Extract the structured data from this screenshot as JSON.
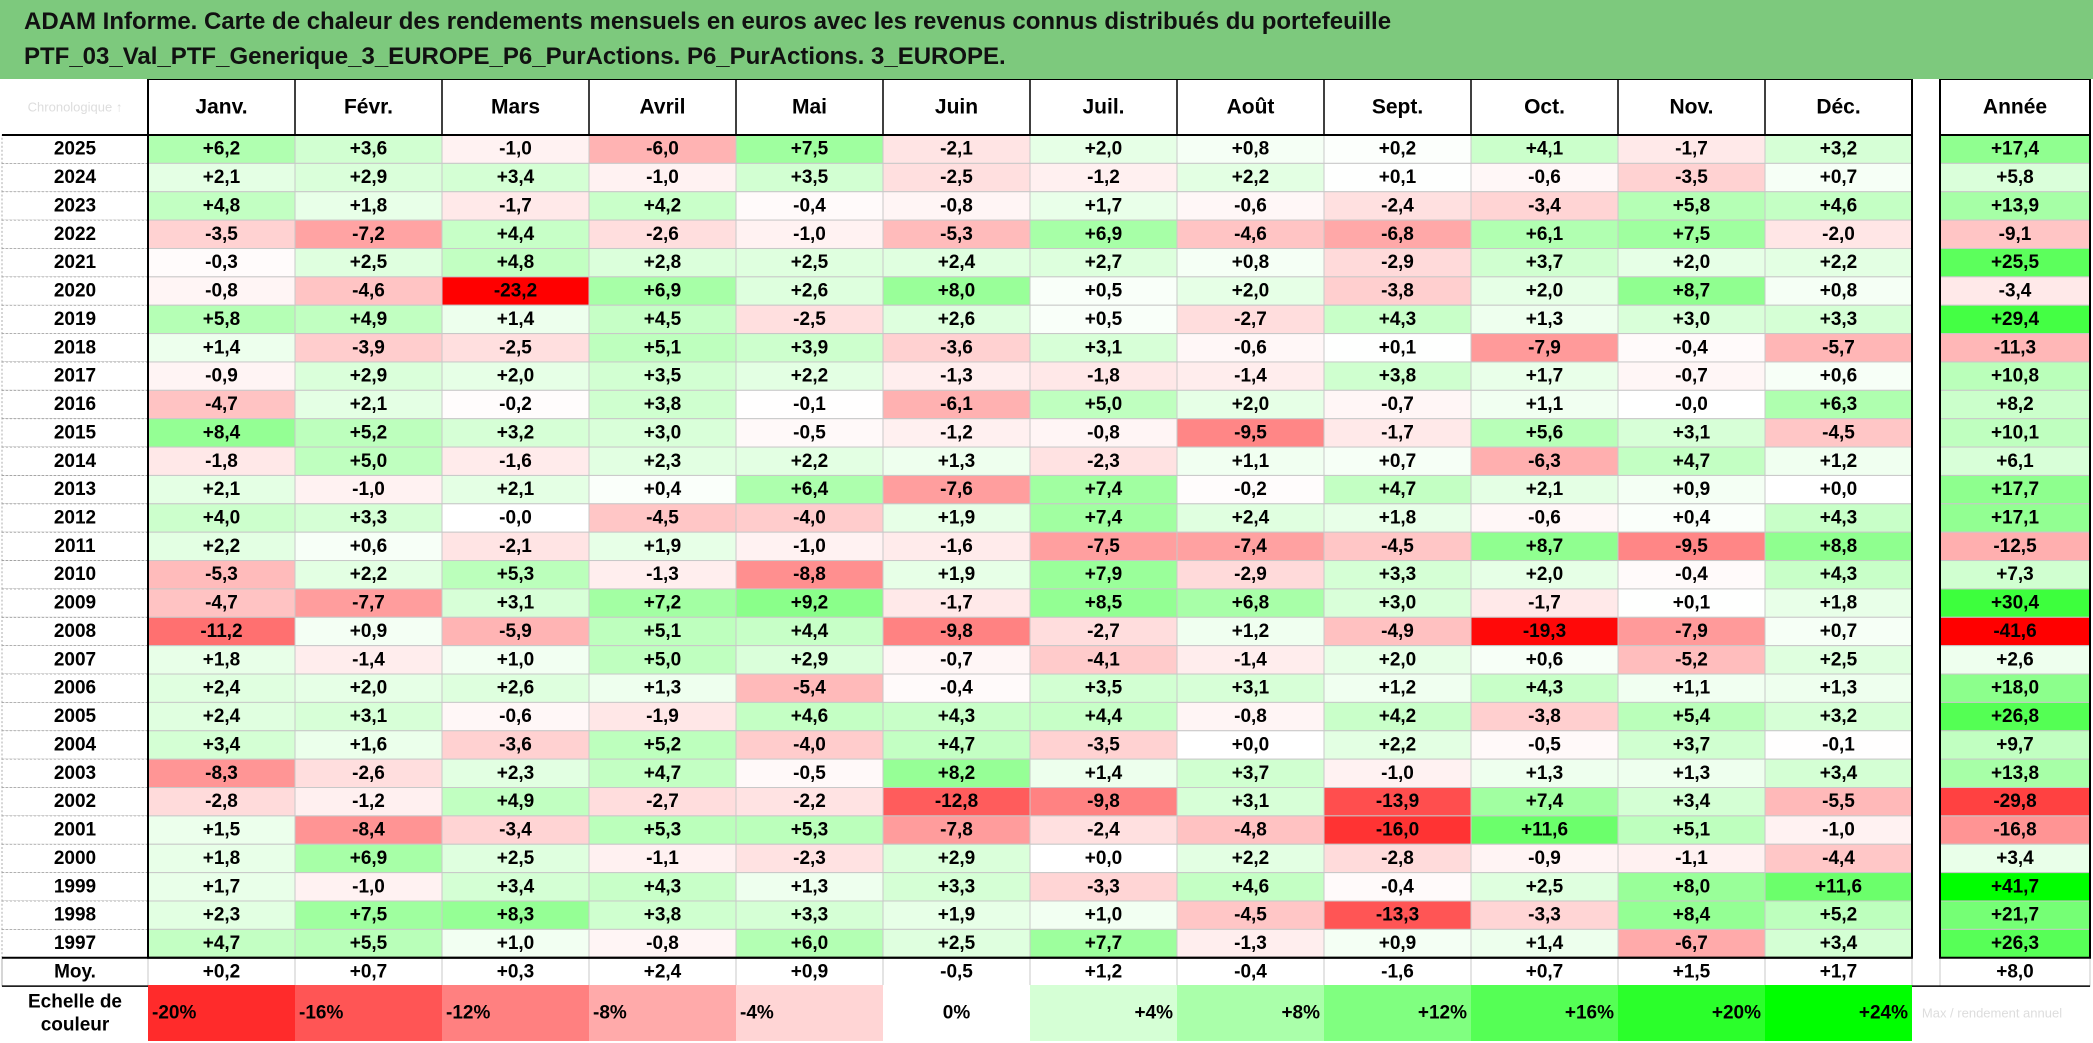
{
  "title": {
    "line1": "ADAM Informe. Carte de chaleur des rendements mensuels en euros avec les revenus connus distribués du portefeuille",
    "line2": "PTF_03_Val_PTF_Generique_3_EUROPE_P6_PurActions. P6_PurActions. 3_EUROPE."
  },
  "colors": {
    "title_bg": "#7dc97d",
    "max_red": "#ff0000",
    "max_green": "#00ff00",
    "zero": "#ffffff"
  },
  "corner_label": "Chronologique ↑",
  "chart_data": {
    "type": "heatmap",
    "columns": [
      "Janv.",
      "Févr.",
      "Mars",
      "Avril",
      "Mai",
      "Juin",
      "Juil.",
      "Août",
      "Sept.",
      "Oct.",
      "Nov.",
      "Déc."
    ],
    "annual_column": "Année",
    "rows": [
      {
        "year": "2025",
        "values": [
          "+6,2",
          "+3,6",
          "-1,0",
          "-6,0",
          "+7,5",
          "-2,1",
          "+2,0",
          "+0,8",
          "+0,2",
          "+4,1",
          "-1,7",
          "+3,2"
        ],
        "annual": "+17,4"
      },
      {
        "year": "2024",
        "values": [
          "+2,1",
          "+2,9",
          "+3,4",
          "-1,0",
          "+3,5",
          "-2,5",
          "-1,2",
          "+2,2",
          "+0,1",
          "-0,6",
          "-3,5",
          "+0,7"
        ],
        "annual": "+5,8"
      },
      {
        "year": "2023",
        "values": [
          "+4,8",
          "+1,8",
          "-1,7",
          "+4,2",
          "-0,4",
          "-0,8",
          "+1,7",
          "-0,6",
          "-2,4",
          "-3,4",
          "+5,8",
          "+4,6"
        ],
        "annual": "+13,9"
      },
      {
        "year": "2022",
        "values": [
          "-3,5",
          "-7,2",
          "+4,4",
          "-2,6",
          "-1,0",
          "-5,3",
          "+6,9",
          "-4,6",
          "-6,8",
          "+6,1",
          "+7,5",
          "-2,0"
        ],
        "annual": "-9,1"
      },
      {
        "year": "2021",
        "values": [
          "-0,3",
          "+2,5",
          "+4,8",
          "+2,8",
          "+2,5",
          "+2,4",
          "+2,7",
          "+0,8",
          "-2,9",
          "+3,7",
          "+2,0",
          "+2,2"
        ],
        "annual": "+25,5"
      },
      {
        "year": "2020",
        "values": [
          "-0,8",
          "-4,6",
          "-23,2",
          "+6,9",
          "+2,6",
          "+8,0",
          "+0,5",
          "+2,0",
          "-3,8",
          "+2,0",
          "+8,7",
          "+0,8"
        ],
        "annual": "-3,4"
      },
      {
        "year": "2019",
        "values": [
          "+5,8",
          "+4,9",
          "+1,4",
          "+4,5",
          "-2,5",
          "+2,6",
          "+0,5",
          "-2,7",
          "+4,3",
          "+1,3",
          "+3,0",
          "+3,3"
        ],
        "annual": "+29,4"
      },
      {
        "year": "2018",
        "values": [
          "+1,4",
          "-3,9",
          "-2,5",
          "+5,1",
          "+3,9",
          "-3,6",
          "+3,1",
          "-0,6",
          "+0,1",
          "-7,9",
          "-0,4",
          "-5,7"
        ],
        "annual": "-11,3"
      },
      {
        "year": "2017",
        "values": [
          "-0,9",
          "+2,9",
          "+2,0",
          "+3,5",
          "+2,2",
          "-1,3",
          "-1,8",
          "-1,4",
          "+3,8",
          "+1,7",
          "-0,7",
          "+0,6"
        ],
        "annual": "+10,8"
      },
      {
        "year": "2016",
        "values": [
          "-4,7",
          "+2,1",
          "-0,2",
          "+3,8",
          "-0,1",
          "-6,1",
          "+5,0",
          "+2,0",
          "-0,7",
          "+1,1",
          "-0,0",
          "+6,3"
        ],
        "annual": "+8,2"
      },
      {
        "year": "2015",
        "values": [
          "+8,4",
          "+5,2",
          "+3,2",
          "+3,0",
          "-0,5",
          "-1,2",
          "-0,8",
          "-9,5",
          "-1,7",
          "+5,6",
          "+3,1",
          "-4,5"
        ],
        "annual": "+10,1"
      },
      {
        "year": "2014",
        "values": [
          "-1,8",
          "+5,0",
          "-1,6",
          "+2,3",
          "+2,2",
          "+1,3",
          "-2,3",
          "+1,1",
          "+0,7",
          "-6,3",
          "+4,7",
          "+1,2"
        ],
        "annual": "+6,1"
      },
      {
        "year": "2013",
        "values": [
          "+2,1",
          "-1,0",
          "+2,1",
          "+0,4",
          "+6,4",
          "-7,6",
          "+7,4",
          "-0,2",
          "+4,7",
          "+2,1",
          "+0,9",
          "+0,0"
        ],
        "annual": "+17,7"
      },
      {
        "year": "2012",
        "values": [
          "+4,0",
          "+3,3",
          "-0,0",
          "-4,5",
          "-4,0",
          "+1,9",
          "+7,4",
          "+2,4",
          "+1,8",
          "-0,6",
          "+0,4",
          "+4,3"
        ],
        "annual": "+17,1"
      },
      {
        "year": "2011",
        "values": [
          "+2,2",
          "+0,6",
          "-2,1",
          "+1,9",
          "-1,0",
          "-1,6",
          "-7,5",
          "-7,4",
          "-4,5",
          "+8,7",
          "-9,5",
          "+8,8"
        ],
        "annual": "-12,5"
      },
      {
        "year": "2010",
        "values": [
          "-5,3",
          "+2,2",
          "+5,3",
          "-1,3",
          "-8,8",
          "+1,9",
          "+7,9",
          "-2,9",
          "+3,3",
          "+2,0",
          "-0,4",
          "+4,3"
        ],
        "annual": "+7,3"
      },
      {
        "year": "2009",
        "values": [
          "-4,7",
          "-7,7",
          "+3,1",
          "+7,2",
          "+9,2",
          "-1,7",
          "+8,5",
          "+6,8",
          "+3,0",
          "-1,7",
          "+0,1",
          "+1,8"
        ],
        "annual": "+30,4"
      },
      {
        "year": "2008",
        "values": [
          "-11,2",
          "+0,9",
          "-5,9",
          "+5,1",
          "+4,4",
          "-9,8",
          "-2,7",
          "+1,2",
          "-4,9",
          "-19,3",
          "-7,9",
          "+0,7"
        ],
        "annual": "-41,6"
      },
      {
        "year": "2007",
        "values": [
          "+1,8",
          "-1,4",
          "+1,0",
          "+5,0",
          "+2,9",
          "-0,7",
          "-4,1",
          "-1,4",
          "+2,0",
          "+0,6",
          "-5,2",
          "+2,5"
        ],
        "annual": "+2,6"
      },
      {
        "year": "2006",
        "values": [
          "+2,4",
          "+2,0",
          "+2,6",
          "+1,3",
          "-5,4",
          "-0,4",
          "+3,5",
          "+3,1",
          "+1,2",
          "+4,3",
          "+1,1",
          "+1,3"
        ],
        "annual": "+18,0"
      },
      {
        "year": "2005",
        "values": [
          "+2,4",
          "+3,1",
          "-0,6",
          "-1,9",
          "+4,6",
          "+4,3",
          "+4,4",
          "-0,8",
          "+4,2",
          "-3,8",
          "+5,4",
          "+3,2"
        ],
        "annual": "+26,8"
      },
      {
        "year": "2004",
        "values": [
          "+3,4",
          "+1,6",
          "-3,6",
          "+5,2",
          "-4,0",
          "+4,7",
          "-3,5",
          "+0,0",
          "+2,2",
          "-0,5",
          "+3,7",
          "-0,1"
        ],
        "annual": "+9,7"
      },
      {
        "year": "2003",
        "values": [
          "-8,3",
          "-2,6",
          "+2,3",
          "+4,7",
          "-0,5",
          "+8,2",
          "+1,4",
          "+3,7",
          "-1,0",
          "+1,3",
          "+1,3",
          "+3,4"
        ],
        "annual": "+13,8"
      },
      {
        "year": "2002",
        "values": [
          "-2,8",
          "-1,2",
          "+4,9",
          "-2,7",
          "-2,2",
          "-12,8",
          "-9,8",
          "+3,1",
          "-13,9",
          "+7,4",
          "+3,4",
          "-5,5"
        ],
        "annual": "-29,8"
      },
      {
        "year": "2001",
        "values": [
          "+1,5",
          "-8,4",
          "-3,4",
          "+5,3",
          "+5,3",
          "-7,8",
          "-2,4",
          "-4,8",
          "-16,0",
          "+11,6",
          "+5,1",
          "-1,0"
        ],
        "annual": "-16,8"
      },
      {
        "year": "2000",
        "values": [
          "+1,8",
          "+6,9",
          "+2,5",
          "-1,1",
          "-2,3",
          "+2,9",
          "+0,0",
          "+2,2",
          "-2,8",
          "-0,9",
          "-1,1",
          "-4,4"
        ],
        "annual": "+3,4"
      },
      {
        "year": "1999",
        "values": [
          "+1,7",
          "-1,0",
          "+3,4",
          "+4,3",
          "+1,3",
          "+3,3",
          "-3,3",
          "+4,6",
          "-0,4",
          "+2,5",
          "+8,0",
          "+11,6"
        ],
        "annual": "+41,7"
      },
      {
        "year": "1998",
        "values": [
          "+2,3",
          "+7,5",
          "+8,3",
          "+3,8",
          "+3,3",
          "+1,9",
          "+1,0",
          "-4,5",
          "-13,3",
          "-3,3",
          "+8,4",
          "+5,2"
        ],
        "annual": "+21,7"
      },
      {
        "year": "1997",
        "values": [
          "+4,7",
          "+5,5",
          "+1,0",
          "-0,8",
          "+6,0",
          "+2,5",
          "+7,7",
          "-1,3",
          "+0,9",
          "+1,4",
          "-6,7",
          "+3,4"
        ],
        "annual": "+26,3"
      }
    ],
    "average": {
      "label": "Moy.",
      "values": [
        "+0,2",
        "+0,7",
        "+0,3",
        "+2,4",
        "+0,9",
        "-0,5",
        "+1,2",
        "-0,4",
        "-1,6",
        "+0,7",
        "+1,5",
        "+1,7"
      ],
      "annual": "+8,0"
    },
    "scale": {
      "label_line1": "Echelle de",
      "label_line2": "couleur",
      "steps": [
        "-20%",
        "-16%",
        "-12%",
        "-8%",
        "-4%",
        "0%",
        "+4%",
        "+8%",
        "+12%",
        "+16%",
        "+20%",
        "+24%"
      ],
      "extra": "Max / rendement annuel"
    },
    "monthly_color_max": 20,
    "annual_color_max": 40
  }
}
